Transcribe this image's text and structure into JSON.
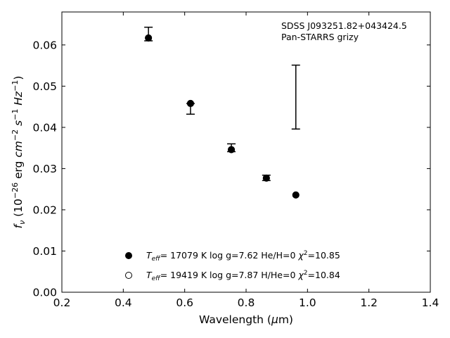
{
  "chart_data": {
    "type": "scatter",
    "title": "",
    "xlabel": "Wavelength (µm)",
    "ylabel": "f_ν (10^-26 erg cm^-2 s^-1 Hz^-1)",
    "xlim": [
      0.2,
      1.4
    ],
    "ylim": [
      0.0,
      0.068
    ],
    "xticks": [
      0.2,
      0.4,
      0.6,
      0.8,
      1.0,
      1.2,
      1.4
    ],
    "xtick_labels": [
      "0.2",
      "0.4",
      "0.6",
      "0.8",
      "1.0",
      "1.2",
      "1.4"
    ],
    "yticks": [
      0.0,
      0.01,
      0.02,
      0.03,
      0.04,
      0.05,
      0.06
    ],
    "ytick_labels": [
      "0.00",
      "0.01",
      "0.02",
      "0.03",
      "0.04",
      "0.05",
      "0.06"
    ],
    "grid": false,
    "legend_placement": "lower-center",
    "annotations": [
      "SDSS J093251.82+043424.5",
      "Pan-STARRS grizy"
    ],
    "observed": [
      {
        "x": 0.482,
        "y_low": 0.061,
        "y_high": 0.0643
      },
      {
        "x": 0.619,
        "y_low": 0.0432,
        "y_high": 0.0458
      },
      {
        "x": 0.752,
        "y_low": 0.0341,
        "y_high": 0.036
      },
      {
        "x": 0.866,
        "y_low": 0.0271,
        "y_high": 0.0284
      },
      {
        "x": 0.962,
        "y_low": 0.0396,
        "y_high": 0.0551
      }
    ],
    "series": [
      {
        "label": "T_eff= 17079 K  log g=7.62  He/H=0  χ²=10.85",
        "marker": "filled-circle",
        "points": [
          {
            "x": 0.482,
            "y": 0.0617
          },
          {
            "x": 0.619,
            "y": 0.0458
          },
          {
            "x": 0.752,
            "y": 0.0346
          },
          {
            "x": 0.866,
            "y": 0.0277
          },
          {
            "x": 0.962,
            "y": 0.0236
          }
        ]
      },
      {
        "label": "T_eff= 19419 K  log g=7.87  H/He=0  χ²=10.84",
        "marker": "open-circle",
        "points": [
          {
            "x": 0.482,
            "y": 0.0617
          },
          {
            "x": 0.619,
            "y": 0.0458
          },
          {
            "x": 0.752,
            "y": 0.0346
          },
          {
            "x": 0.866,
            "y": 0.0277
          },
          {
            "x": 0.962,
            "y": 0.0236
          }
        ]
      }
    ]
  }
}
